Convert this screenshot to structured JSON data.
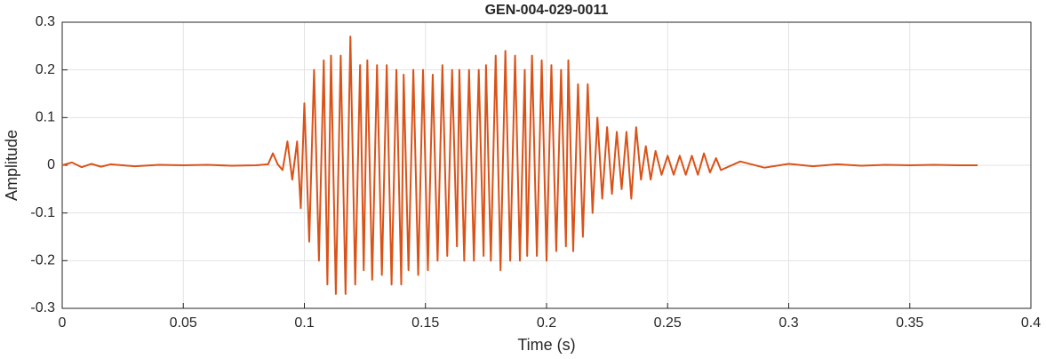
{
  "chart_data": {
    "type": "line",
    "title": "GEN-004-029-0011",
    "x_label": "Time (s)",
    "y_label": "Amplitude",
    "color": "#D95319",
    "grid": true,
    "xlim": [
      0,
      0.4
    ],
    "xticks": [
      0,
      0.05,
      0.1,
      0.15,
      0.2,
      0.25,
      0.3,
      0.35,
      0.4
    ],
    "ylim": [
      -0.3,
      0.3
    ],
    "yticks": [
      -0.3,
      -0.2,
      -0.1,
      0,
      0.1,
      0.2,
      0.3
    ],
    "x": [
      0,
      0.004,
      0.008,
      0.012,
      0.016,
      0.02,
      0.03,
      0.04,
      0.05,
      0.06,
      0.07,
      0.08,
      0.085,
      0.087,
      0.089,
      0.091,
      0.093,
      0.095,
      0.097,
      0.0985,
      0.1,
      0.102,
      0.104,
      0.106,
      0.108,
      0.1095,
      0.111,
      0.113,
      0.115,
      0.117,
      0.119,
      0.121,
      0.123,
      0.1245,
      0.126,
      0.128,
      0.13,
      0.132,
      0.134,
      0.136,
      0.138,
      0.14,
      0.141,
      0.143,
      0.145,
      0.147,
      0.149,
      0.151,
      0.153,
      0.155,
      0.157,
      0.159,
      0.161,
      0.163,
      0.164,
      0.166,
      0.168,
      0.17,
      0.172,
      0.174,
      0.175,
      0.177,
      0.179,
      0.181,
      0.183,
      0.185,
      0.187,
      0.189,
      0.191,
      0.192,
      0.194,
      0.196,
      0.198,
      0.2,
      0.202,
      0.204,
      0.206,
      0.208,
      0.209,
      0.211,
      0.213,
      0.215,
      0.217,
      0.219,
      0.221,
      0.223,
      0.225,
      0.227,
      0.229,
      0.231,
      0.233,
      0.235,
      0.237,
      0.239,
      0.241,
      0.243,
      0.245,
      0.2475,
      0.25,
      0.2525,
      0.255,
      0.2575,
      0.26,
      0.2625,
      0.265,
      0.2675,
      0.27,
      0.272,
      0.28,
      0.29,
      0.3,
      0.31,
      0.32,
      0.33,
      0.34,
      0.35,
      0.36,
      0.37,
      0.378
    ],
    "values": [
      0,
      0.006,
      -0.004,
      0.003,
      -0.003,
      0.002,
      -0.002,
      0.001,
      0,
      0.001,
      -0.001,
      0,
      0.002,
      0.025,
      0.002,
      -0.01,
      0.05,
      -0.03,
      0.05,
      -0.09,
      0.13,
      -0.16,
      0.2,
      -0.2,
      0.22,
      -0.25,
      0.23,
      -0.27,
      0.23,
      -0.27,
      0.27,
      -0.25,
      0.21,
      -0.22,
      0.22,
      -0.24,
      0.21,
      -0.23,
      0.21,
      -0.25,
      0.2,
      -0.25,
      0.19,
      -0.22,
      0.2,
      -0.23,
      0.2,
      -0.22,
      0.19,
      -0.2,
      0.21,
      -0.19,
      0.2,
      -0.17,
      0.2,
      -0.2,
      0.2,
      -0.2,
      0.2,
      -0.19,
      0.21,
      -0.2,
      0.23,
      -0.22,
      0.24,
      -0.2,
      0.23,
      -0.2,
      0.2,
      -0.19,
      0.23,
      -0.19,
      0.22,
      -0.2,
      0.21,
      -0.18,
      0.2,
      -0.17,
      0.22,
      -0.18,
      0.17,
      -0.15,
      0.17,
      -0.1,
      0.1,
      -0.07,
      0.08,
      -0.06,
      0.07,
      -0.05,
      0.07,
      -0.07,
      0.08,
      -0.03,
      0.04,
      -0.03,
      0.03,
      -0.02,
      0.02,
      -0.02,
      0.02,
      -0.02,
      0.02,
      -0.02,
      0.025,
      -0.015,
      0.015,
      -0.01,
      0.008,
      -0.005,
      0.003,
      -0.002,
      0.002,
      -0.001,
      0.001,
      0,
      0.001,
      0,
      0
    ]
  }
}
